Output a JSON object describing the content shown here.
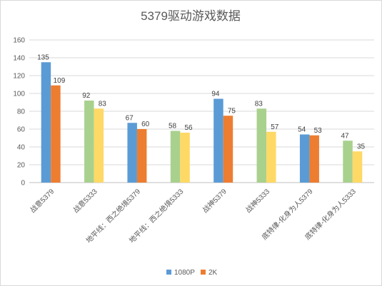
{
  "chart_data": {
    "type": "bar",
    "title": "5379驱动游戏数据",
    "categories": [
      "战意5379",
      "战意5333",
      "地平线：西之绝境5379",
      "地平线：西之绝境5333",
      "战神5379",
      "战神5333",
      "底特律-化身为人5379",
      "底特律-化身为人5333"
    ],
    "series": [
      {
        "name": "1080P",
        "values": [
          135,
          92,
          67,
          58,
          94,
          83,
          54,
          47
        ]
      },
      {
        "name": "2K",
        "values": [
          109,
          83,
          60,
          56,
          75,
          57,
          53,
          35
        ]
      }
    ],
    "bar_colors": [
      [
        "#5b9bd5",
        "#ed7d31"
      ],
      [
        "#a9d18e",
        "#ffd966"
      ],
      [
        "#5b9bd5",
        "#ed7d31"
      ],
      [
        "#a9d18e",
        "#ffd966"
      ],
      [
        "#5b9bd5",
        "#ed7d31"
      ],
      [
        "#a9d18e",
        "#ffd966"
      ],
      [
        "#5b9bd5",
        "#ed7d31"
      ],
      [
        "#a9d18e",
        "#ffd966"
      ]
    ],
    "legend_colors": [
      "#5b9bd5",
      "#ed7d31"
    ],
    "ylim": [
      0,
      160
    ],
    "yticks": [
      0,
      20,
      40,
      60,
      80,
      100,
      120,
      140,
      160
    ],
    "grid": true,
    "legend_position": "bottom",
    "xlabel": "",
    "ylabel": ""
  }
}
